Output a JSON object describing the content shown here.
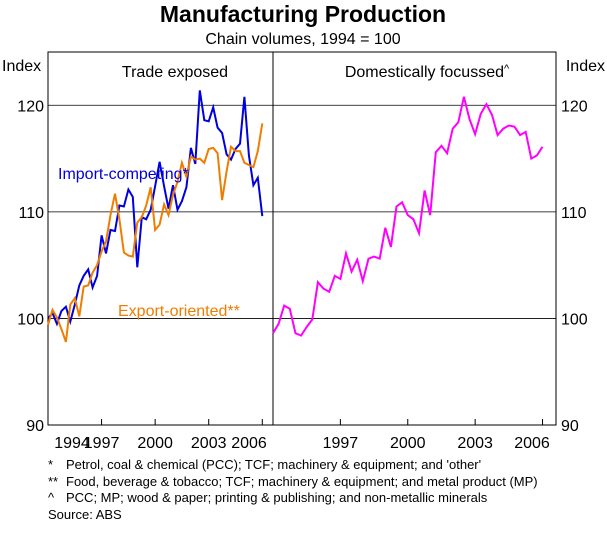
{
  "chart_data": {
    "type": "line",
    "title": "Manufacturing Production",
    "subtitle": "Chain volumes, 1994 = 100",
    "ylabel_left": "Index",
    "ylabel_right": "Index",
    "ylim": [
      90,
      125
    ],
    "yticks": [
      "90",
      "100",
      "110",
      "120"
    ],
    "grid": true,
    "panels": [
      {
        "title": "Trade exposed",
        "xlim": [
          1994,
          2006.6
        ],
        "xticks": [
          "1994",
          "1997",
          "2000",
          "2003",
          "2006"
        ],
        "series": [
          {
            "name": "Import-competing*",
            "color": "#0000dd",
            "x": [
              1994.0,
              1994.25,
              1994.5,
              1994.75,
              1995.0,
              1995.25,
              1995.5,
              1995.75,
              1996.0,
              1996.25,
              1996.5,
              1996.75,
              1997.0,
              1997.25,
              1997.5,
              1997.75,
              1998.0,
              1998.25,
              1998.5,
              1998.75,
              1999.0,
              1999.25,
              1999.5,
              1999.75,
              2000.0,
              2000.25,
              2000.5,
              2000.75,
              2001.0,
              2001.25,
              2001.5,
              2001.75,
              2002.0,
              2002.25,
              2002.5,
              2002.75,
              2003.0,
              2003.25,
              2003.5,
              2003.75,
              2004.0,
              2004.25,
              2004.5,
              2004.75,
              2005.0,
              2005.25,
              2005.5,
              2005.75,
              2006.0
            ],
            "values": [
              100.0,
              100.5,
              99.5,
              100.7,
              101.1,
              99.7,
              101.3,
              103.1,
              104.0,
              104.6,
              102.9,
              104.0,
              107.8,
              106.1,
              108.3,
              108.2,
              110.6,
              110.5,
              112.1,
              111.4,
              104.8,
              109.5,
              109.3,
              110.2,
              112.4,
              114.7,
              112.4,
              110.3,
              112.5,
              110.2,
              111.0,
              112.3,
              116.0,
              114.5,
              121.4,
              118.6,
              118.5,
              119.8,
              117.9,
              117.4,
              115.4,
              114.9,
              115.9,
              116.4,
              120.8,
              115.3,
              112.5,
              113.2,
              109.6
            ]
          },
          {
            "name": "Export-oriented**",
            "color": "#f07d00",
            "x": [
              1994.0,
              1994.25,
              1994.5,
              1994.75,
              1995.0,
              1995.25,
              1995.5,
              1995.75,
              1996.0,
              1996.25,
              1996.5,
              1996.75,
              1997.0,
              1997.25,
              1997.5,
              1997.75,
              1998.0,
              1998.25,
              1998.5,
              1998.75,
              1999.0,
              1999.25,
              1999.5,
              1999.75,
              2000.0,
              2000.25,
              2000.5,
              2000.75,
              2001.0,
              2001.25,
              2001.5,
              2001.75,
              2002.0,
              2002.25,
              2002.5,
              2002.75,
              2003.0,
              2003.25,
              2003.5,
              2003.75,
              2004.0,
              2004.25,
              2004.5,
              2004.75,
              2005.0,
              2005.25,
              2005.5,
              2005.75,
              2006.0
            ],
            "values": [
              99.4,
              100.8,
              100.1,
              99.0,
              97.8,
              101.3,
              101.9,
              100.2,
              103.0,
              103.1,
              104.3,
              105.0,
              106.3,
              107.2,
              109.7,
              111.7,
              109.3,
              106.2,
              105.9,
              105.8,
              109.0,
              109.5,
              110.6,
              112.3,
              108.3,
              108.8,
              110.7,
              109.7,
              111.6,
              112.8,
              114.6,
              113.3,
              115.2,
              114.9,
              115.0,
              114.6,
              115.9,
              116.0,
              115.5,
              111.1,
              113.8,
              116.1,
              115.7,
              115.7,
              114.6,
              114.4,
              114.2,
              115.7,
              118.3
            ]
          }
        ],
        "annotations": [
          {
            "text": "Import-competing*",
            "color": "#0000dd"
          },
          {
            "text": "Export-oriented**",
            "color": "#f07d00"
          }
        ]
      },
      {
        "title": "Domestically focussed",
        "title_sup": "^",
        "xlim": [
          1994,
          2006.6
        ],
        "xticks": [
          "1997",
          "2000",
          "2003",
          "2006"
        ],
        "series": [
          {
            "name": "Domestically focussed",
            "color": "#ff00ff",
            "x": [
              1994.0,
              1994.25,
              1994.5,
              1994.75,
              1995.0,
              1995.25,
              1995.5,
              1995.75,
              1996.0,
              1996.25,
              1996.5,
              1996.75,
              1997.0,
              1997.25,
              1997.5,
              1997.75,
              1998.0,
              1998.25,
              1998.5,
              1998.75,
              1999.0,
              1999.25,
              1999.5,
              1999.75,
              2000.0,
              2000.25,
              2000.5,
              2000.75,
              2001.0,
              2001.25,
              2001.5,
              2001.75,
              2002.0,
              2002.25,
              2002.5,
              2002.75,
              2003.0,
              2003.25,
              2003.5,
              2003.75,
              2004.0,
              2004.25,
              2004.5,
              2004.75,
              2005.0,
              2005.25,
              2005.5,
              2005.75,
              2006.0
            ],
            "values": [
              98.6,
              99.5,
              101.2,
              100.9,
              98.6,
              98.4,
              99.2,
              99.9,
              103.4,
              102.8,
              102.5,
              104.0,
              103.7,
              106.1,
              104.4,
              105.5,
              103.5,
              105.6,
              105.8,
              105.6,
              108.5,
              106.7,
              110.5,
              110.9,
              109.7,
              109.3,
              108.0,
              112.0,
              109.7,
              115.6,
              116.2,
              115.5,
              117.8,
              118.4,
              120.8,
              118.7,
              117.3,
              119.2,
              120.1,
              119.1,
              117.2,
              117.8,
              118.1,
              118.0,
              117.2,
              117.5,
              115.0,
              115.3,
              116.1
            ]
          }
        ]
      }
    ]
  },
  "footnotes": [
    {
      "marker": "*",
      "text": "Petrol, coal & chemical (PCC); TCF; machinery & equipment; and 'other'"
    },
    {
      "marker": "**",
      "text": "Food, beverage & tobacco; TCF; machinery & equipment; and metal product (MP)"
    },
    {
      "marker": "^",
      "text": "PCC; MP; wood & paper; printing & publishing; and non-metallic minerals"
    }
  ],
  "source": "Source: ABS"
}
